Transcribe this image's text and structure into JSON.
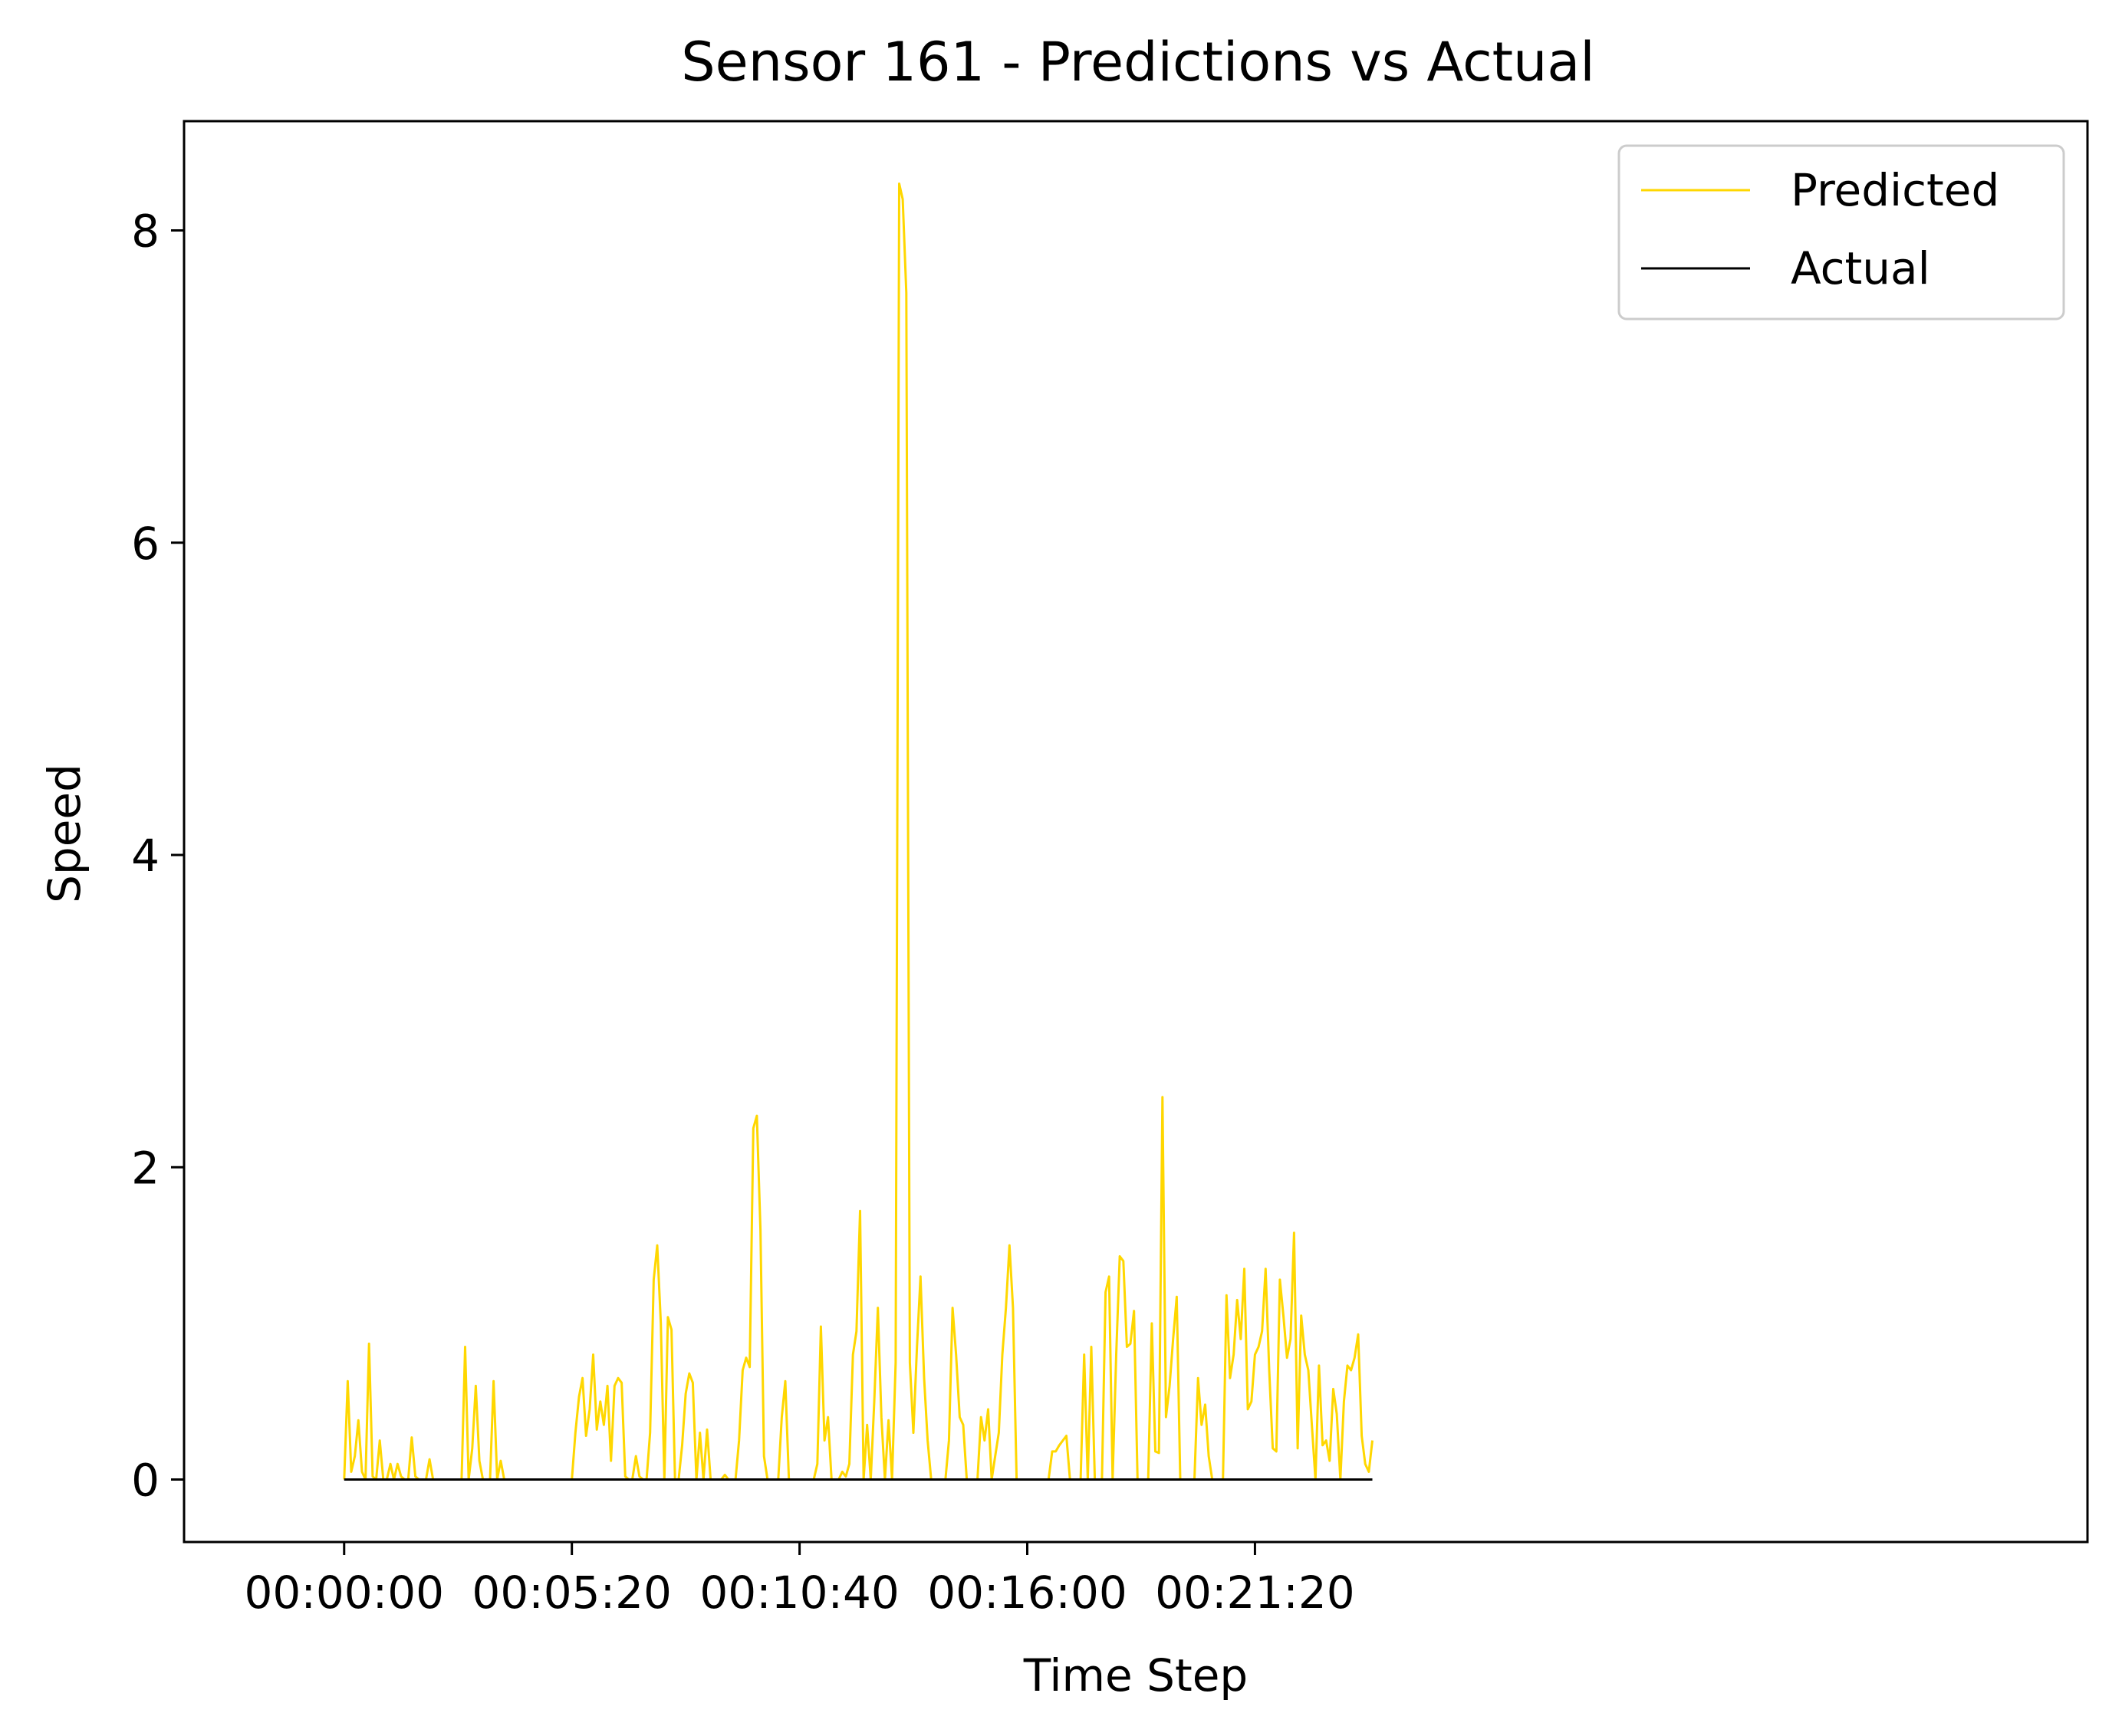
{
  "chart_data": {
    "type": "line",
    "title": "Sensor 161 - Predictions vs Actual",
    "xlabel": "Time Step",
    "ylabel": "Speed",
    "x_unit": "seconds",
    "xlim": [
      -225,
      2450
    ],
    "ylim": [
      -0.4,
      8.7
    ],
    "yticks": [
      0,
      2,
      4,
      6,
      8
    ],
    "xtick_labels": [
      "00:00:00",
      "00:05:20",
      "00:10:40",
      "00:16:00",
      "00:21:20"
    ],
    "xtick_seconds": [
      0,
      320,
      640,
      960,
      1280
    ],
    "grid": false,
    "legend_position": "top-right",
    "sample_interval_seconds": 5,
    "series": [
      {
        "name": "Predicted",
        "color": "#FFD700",
        "values": [
          0,
          0.63,
          0.05,
          0.15,
          0.38,
          0.05,
          0,
          0.87,
          0.02,
          0,
          0.25,
          0,
          0,
          0.1,
          0,
          0.1,
          0.02,
          0,
          0,
          0.27,
          0.02,
          0,
          0,
          0,
          0.13,
          0,
          0,
          0,
          0,
          0,
          0,
          0,
          0,
          0,
          0.85,
          0,
          0.2,
          0.6,
          0.12,
          0,
          0,
          0,
          0.63,
          0,
          0.12,
          0,
          0,
          0,
          0,
          0,
          0,
          0,
          0,
          0,
          0,
          0,
          0,
          0,
          0,
          0,
          0,
          0,
          0,
          0,
          0,
          0.3,
          0.53,
          0.65,
          0.28,
          0.45,
          0.8,
          0.32,
          0.5,
          0.35,
          0.6,
          0.12,
          0.6,
          0.65,
          0.62,
          0.02,
          0,
          0,
          0.15,
          0.02,
          0,
          0,
          0.3,
          1.28,
          1.5,
          1.0,
          0,
          1.04,
          0.96,
          0,
          0,
          0.22,
          0.55,
          0.68,
          0.62,
          0,
          0.3,
          0,
          0.32,
          0,
          0,
          0,
          0,
          0.03,
          0,
          0,
          0,
          0.25,
          0.7,
          0.78,
          0.72,
          2.25,
          2.33,
          1.6,
          0.15,
          0,
          0,
          0,
          0,
          0.4,
          0.63,
          0,
          0,
          0,
          0,
          0,
          0,
          0,
          0,
          0.1,
          0.98,
          0.25,
          0.4,
          0,
          0,
          0,
          0.05,
          0.02,
          0.1,
          0.8,
          0.95,
          1.72,
          0,
          0.35,
          0,
          0.5,
          1.1,
          0.4,
          0,
          0.38,
          0,
          0.75,
          8.3,
          8.2,
          7.6,
          0.75,
          0.3,
          0.85,
          1.3,
          0.65,
          0.25,
          0,
          0,
          0,
          0,
          0,
          0.25,
          1.1,
          0.8,
          0.4,
          0.35,
          0,
          0,
          0,
          0,
          0.4,
          0.25,
          0.45,
          0,
          0.15,
          0.3,
          0.8,
          1.1,
          1.5,
          1.1,
          0,
          0,
          0,
          0,
          0,
          0,
          0,
          0,
          0,
          0,
          0.18,
          0.18,
          0.22,
          0.25,
          0.28,
          0,
          0,
          0,
          0,
          0.8,
          0,
          0.85,
          0,
          0,
          0,
          1.2,
          1.3,
          0,
          0.8,
          1.43,
          1.4,
          0.85,
          0.87,
          1.08,
          0,
          0,
          0,
          0,
          1.0,
          0.18,
          0.17,
          2.45,
          0.4,
          0.6,
          0.9,
          1.17,
          0,
          0,
          0,
          0,
          0,
          0.65,
          0.35,
          0.48,
          0.15,
          0,
          0,
          0,
          0,
          1.18,
          0.65,
          0.8,
          1.15,
          0.9,
          1.35,
          0.45,
          0.5,
          0.8,
          0.85,
          0.95,
          1.35,
          0.7,
          0.2,
          0.18,
          1.28,
          1.05,
          0.78,
          0.9,
          1.58,
          0.2,
          1.05,
          0.8,
          0.7,
          0.35,
          0,
          0.73,
          0.22,
          0.25,
          0.12,
          0.58,
          0.42,
          0,
          0.5,
          0.73,
          0.7,
          0.78,
          0.93,
          0.28,
          0.1,
          0.05,
          0.25
        ]
      },
      {
        "name": "Actual",
        "color": "#000000",
        "constant_value": 0
      }
    ]
  }
}
